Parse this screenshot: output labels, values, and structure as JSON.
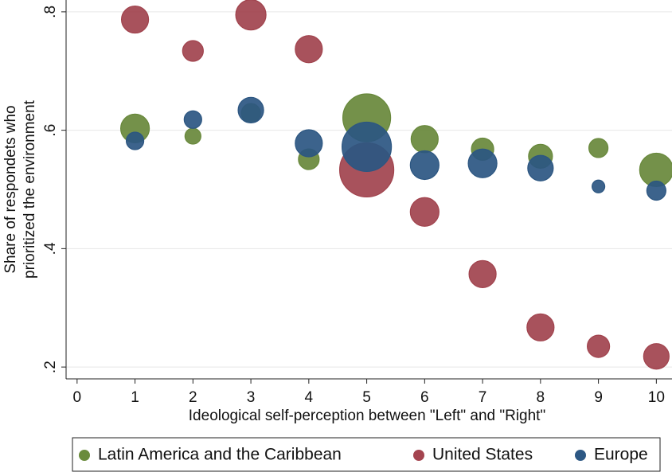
{
  "chart_data": {
    "type": "bubble",
    "xlabel": "Ideological self-perception between \"Left\" and \"Right\"",
    "ylabel": [
      "Share of respondets who",
      "prioritized the environment"
    ],
    "x": [
      1,
      2,
      3,
      4,
      5,
      6,
      7,
      8,
      9,
      10
    ],
    "xlim": [
      -0.19,
      10.27
    ],
    "xticks": [
      0,
      1,
      2,
      3,
      4,
      5,
      6,
      7,
      8,
      9,
      10
    ],
    "ylim": [
      0.18,
      0.82
    ],
    "yticks": [
      {
        "value": 0.2,
        "label": ".2"
      },
      {
        "value": 0.4,
        "label": ".4"
      },
      {
        "value": 0.6,
        "label": ".6"
      },
      {
        "value": 0.8,
        "label": ".8"
      }
    ],
    "grid": true,
    "legend": "bottom",
    "series": [
      {
        "name": "Latin America and the Caribbean",
        "color": "#6a8b3c",
        "values": [
          0.603,
          0.59,
          0.629,
          0.551,
          0.621,
          0.585,
          0.568,
          0.556,
          0.57,
          0.533
        ],
        "sizes": [
          324,
          100,
          144,
          169,
          900,
          289,
          196,
          225,
          144,
          441
        ]
      },
      {
        "name": "United States",
        "color": "#a4444f",
        "values": [
          0.787,
          0.734,
          0.795,
          0.737,
          0.533,
          0.462,
          0.357,
          0.267,
          0.235,
          0.218
        ],
        "sizes": [
          289,
          169,
          361,
          289,
          1156,
          324,
          289,
          289,
          196,
          256
        ]
      },
      {
        "name": "Europe",
        "color": "#2d5884",
        "values": [
          0.582,
          0.618,
          0.634,
          0.578,
          0.572,
          0.541,
          0.544,
          0.536,
          0.505,
          0.498
        ],
        "sizes": [
          121,
          121,
          256,
          289,
          961,
          324,
          324,
          256,
          64,
          144
        ]
      }
    ]
  }
}
